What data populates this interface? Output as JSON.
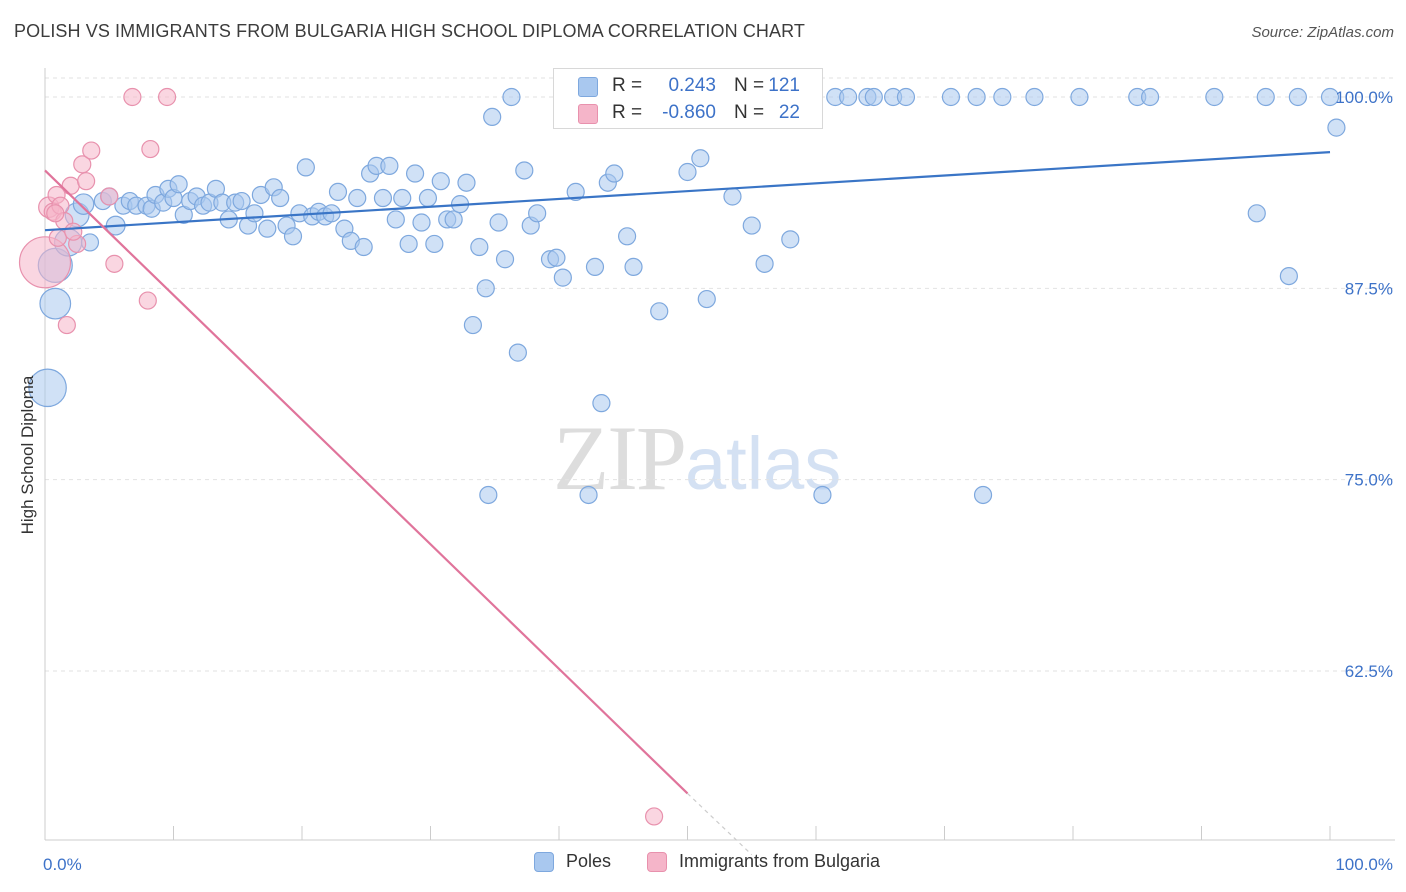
{
  "title": "POLISH VS IMMIGRANTS FROM BULGARIA HIGH SCHOOL DIPLOMA CORRELATION CHART",
  "source": "Source: ZipAtlas.com",
  "watermark": {
    "zip": "ZIP",
    "atlas": "atlas"
  },
  "colors": {
    "blue_fill": "#a9c8ef",
    "blue_stroke": "#7ea8de",
    "blue_line": "#3a75c6",
    "pink_fill": "#f5b5c9",
    "pink_stroke": "#e891ad",
    "pink_line": "#e0749b",
    "axis_text": "#3d72c8",
    "grid": "#e2e2e2"
  },
  "stats": [
    {
      "r_label": "R =",
      "r_value": "0.243",
      "n_label": "N =",
      "n_value": "121",
      "color": "blue"
    },
    {
      "r_label": "R =",
      "r_value": "-0.860",
      "n_label": "N =",
      "n_value": "22",
      "color": "pink"
    }
  ],
  "chart_data": {
    "type": "scatter",
    "title": "POLISH VS IMMIGRANTS FROM BULGARIA HIGH SCHOOL DIPLOMA CORRELATION CHART",
    "xlabel": "",
    "ylabel": "High School Diploma",
    "xlim": [
      0,
      100
    ],
    "ylim": [
      52.8,
      101.5
    ],
    "x_tick_labels": [
      "0.0%",
      "100.0%"
    ],
    "y_ticks": [
      62.5,
      75.0,
      87.5,
      100.0
    ],
    "y_tick_labels": [
      "62.5%",
      "75.0%",
      "87.5%",
      "100.0%"
    ],
    "grid": true,
    "legend_placement": "bottom-center",
    "series": [
      {
        "name": "Poles",
        "color": "blue",
        "trend": {
          "x": [
            0,
            100
          ],
          "y": [
            91.3,
            96.4
          ]
        },
        "points": [
          [
            0.2,
            81.0,
            2.2
          ],
          [
            0.8,
            86.5,
            1.8
          ],
          [
            0.8,
            89.0,
            2.0
          ],
          [
            1.8,
            90.5,
            1.6
          ],
          [
            2.5,
            92.3,
            1.4
          ],
          [
            3.0,
            93.0,
            1.2
          ],
          [
            3.5,
            90.5,
            1.0
          ],
          [
            4.5,
            93.2,
            1.0
          ],
          [
            5.0,
            93.5,
            1.0
          ],
          [
            5.5,
            91.6,
            1.1
          ],
          [
            6.1,
            92.9,
            1.0
          ],
          [
            6.6,
            93.2,
            1.0
          ],
          [
            7.1,
            92.9,
            1.0
          ],
          [
            7.9,
            92.9,
            1.0
          ],
          [
            8.3,
            92.7,
            1.0
          ],
          [
            8.6,
            93.6,
            1.0
          ],
          [
            9.2,
            93.1,
            1.0
          ],
          [
            9.6,
            94.0,
            1.0
          ],
          [
            10.0,
            93.4,
            1.0
          ],
          [
            10.4,
            94.3,
            1.0
          ],
          [
            10.8,
            92.3,
            1.0
          ],
          [
            11.3,
            93.2,
            1.0
          ],
          [
            11.8,
            93.5,
            1.0
          ],
          [
            12.3,
            92.9,
            1.0
          ],
          [
            12.8,
            93.1,
            1.0
          ],
          [
            13.3,
            94.0,
            1.0
          ],
          [
            13.8,
            93.1,
            1.0
          ],
          [
            14.3,
            92.0,
            1.0
          ],
          [
            14.8,
            93.1,
            1.0
          ],
          [
            15.3,
            93.2,
            1.0
          ],
          [
            15.8,
            91.6,
            1.0
          ],
          [
            16.3,
            92.4,
            1.0
          ],
          [
            16.8,
            93.6,
            1.0
          ],
          [
            17.3,
            91.4,
            1.0
          ],
          [
            17.8,
            94.1,
            1.0
          ],
          [
            18.3,
            93.4,
            1.0
          ],
          [
            18.8,
            91.6,
            1.0
          ],
          [
            19.3,
            90.9,
            1.0
          ],
          [
            19.8,
            92.4,
            1.0
          ],
          [
            20.3,
            95.4,
            1.0
          ],
          [
            20.8,
            92.2,
            1.0
          ],
          [
            21.3,
            92.5,
            1.0
          ],
          [
            21.8,
            92.2,
            1.0
          ],
          [
            22.3,
            92.4,
            1.0
          ],
          [
            22.8,
            93.8,
            1.0
          ],
          [
            23.3,
            91.4,
            1.0
          ],
          [
            23.8,
            90.6,
            1.0
          ],
          [
            24.3,
            93.4,
            1.0
          ],
          [
            24.8,
            90.2,
            1.0
          ],
          [
            25.3,
            95.0,
            1.0
          ],
          [
            25.8,
            95.5,
            1.0
          ],
          [
            26.3,
            93.4,
            1.0
          ],
          [
            26.8,
            95.5,
            1.0
          ],
          [
            27.3,
            92.0,
            1.0
          ],
          [
            27.8,
            93.4,
            1.0
          ],
          [
            28.3,
            90.4,
            1.0
          ],
          [
            28.8,
            95.0,
            1.0
          ],
          [
            29.3,
            91.8,
            1.0
          ],
          [
            29.8,
            93.4,
            1.0
          ],
          [
            30.3,
            90.4,
            1.0
          ],
          [
            30.8,
            94.5,
            1.0
          ],
          [
            31.3,
            92.0,
            1.0
          ],
          [
            31.8,
            92.0,
            1.0
          ],
          [
            32.3,
            93.0,
            1.0
          ],
          [
            32.8,
            94.4,
            1.0
          ],
          [
            33.3,
            85.1,
            1.0
          ],
          [
            33.8,
            90.2,
            1.0
          ],
          [
            34.3,
            87.5,
            1.0
          ],
          [
            34.8,
            98.7,
            1.0
          ],
          [
            35.3,
            91.8,
            1.0
          ],
          [
            35.8,
            89.4,
            1.0
          ],
          [
            36.3,
            100.0,
            1.0
          ],
          [
            36.8,
            83.3,
            1.0
          ],
          [
            37.3,
            95.2,
            1.0
          ],
          [
            37.8,
            91.6,
            1.0
          ],
          [
            38.3,
            92.4,
            1.0
          ],
          [
            39.3,
            89.4,
            1.0
          ],
          [
            39.8,
            89.5,
            1.0
          ],
          [
            40.3,
            88.2,
            1.0
          ],
          [
            41.3,
            93.8,
            1.0
          ],
          [
            41.8,
            100.0,
            1.0
          ],
          [
            42.8,
            88.9,
            1.0
          ],
          [
            43.3,
            80.0,
            1.0
          ],
          [
            43.8,
            94.4,
            1.0
          ],
          [
            44.3,
            95.0,
            1.0
          ],
          [
            45.3,
            90.9,
            1.0
          ],
          [
            45.8,
            88.9,
            1.0
          ],
          [
            47.8,
            86.0,
            1.0
          ],
          [
            47.3,
            100.0,
            1.0
          ],
          [
            48.8,
            100.0,
            1.0
          ],
          [
            50.0,
            95.1,
            1.0
          ],
          [
            51.0,
            96.0,
            1.0
          ],
          [
            51.5,
            86.8,
            1.0
          ],
          [
            53.5,
            93.5,
            1.0
          ],
          [
            54.3,
            100.0,
            1.0
          ],
          [
            55.0,
            91.6,
            1.0
          ],
          [
            56.0,
            89.1,
            1.0
          ],
          [
            58.0,
            90.7,
            1.0
          ],
          [
            61.5,
            100.0,
            1.0
          ],
          [
            62.5,
            100.0,
            1.0
          ],
          [
            64.0,
            100.0,
            1.0
          ],
          [
            64.5,
            100.0,
            1.0
          ],
          [
            66.0,
            100.0,
            1.0
          ],
          [
            67.0,
            100.0,
            1.0
          ],
          [
            70.5,
            100.0,
            1.0
          ],
          [
            72.5,
            100.0,
            1.0
          ],
          [
            74.5,
            100.0,
            1.0
          ],
          [
            77.0,
            100.0,
            1.0
          ],
          [
            80.5,
            100.0,
            1.0
          ],
          [
            85.0,
            100.0,
            1.0
          ],
          [
            86.0,
            100.0,
            1.0
          ],
          [
            91.0,
            100.0,
            1.0
          ],
          [
            95.0,
            100.0,
            1.0
          ],
          [
            97.5,
            100.0,
            1.0
          ],
          [
            100.0,
            100.0,
            1.0
          ],
          [
            94.3,
            92.4,
            1.0
          ],
          [
            96.8,
            88.3,
            1.0
          ],
          [
            100.5,
            98.0,
            1.0
          ],
          [
            34.5,
            74.0,
            1.0
          ],
          [
            42.3,
            74.0,
            1.0
          ],
          [
            60.5,
            74.0,
            1.0
          ],
          [
            73.0,
            74.0,
            1.0
          ]
        ]
      },
      {
        "name": "Immigrants from Bulgaria",
        "color": "pink",
        "trend": {
          "x": [
            0,
            50
          ],
          "y": [
            95.2,
            54.5
          ]
        },
        "trend_dashed": {
          "x": [
            50,
            55
          ],
          "y": [
            54.5,
            50.5
          ]
        },
        "points": [
          [
            0.0,
            89.2,
            3.0
          ],
          [
            0.3,
            92.8,
            1.2
          ],
          [
            0.6,
            92.5,
            1.0
          ],
          [
            0.9,
            93.6,
            1.0
          ],
          [
            1.2,
            92.9,
            1.0
          ],
          [
            1.5,
            91.9,
            1.0
          ],
          [
            1.7,
            85.1,
            1.0
          ],
          [
            2.0,
            94.2,
            1.0
          ],
          [
            2.5,
            90.4,
            1.0
          ],
          [
            2.9,
            95.6,
            1.0
          ],
          [
            3.2,
            94.5,
            1.0
          ],
          [
            3.6,
            96.5,
            1.0
          ],
          [
            5.0,
            93.5,
            1.0
          ],
          [
            5.4,
            89.1,
            1.0
          ],
          [
            6.8,
            100.0,
            1.0
          ],
          [
            8.2,
            96.6,
            1.0
          ],
          [
            9.5,
            100.0,
            1.0
          ],
          [
            8.0,
            86.7,
            1.0
          ],
          [
            0.8,
            92.4,
            1.0
          ],
          [
            1.0,
            90.8,
            1.0
          ],
          [
            2.2,
            91.2,
            1.0
          ],
          [
            47.4,
            53.0,
            1.0
          ]
        ]
      }
    ]
  }
}
